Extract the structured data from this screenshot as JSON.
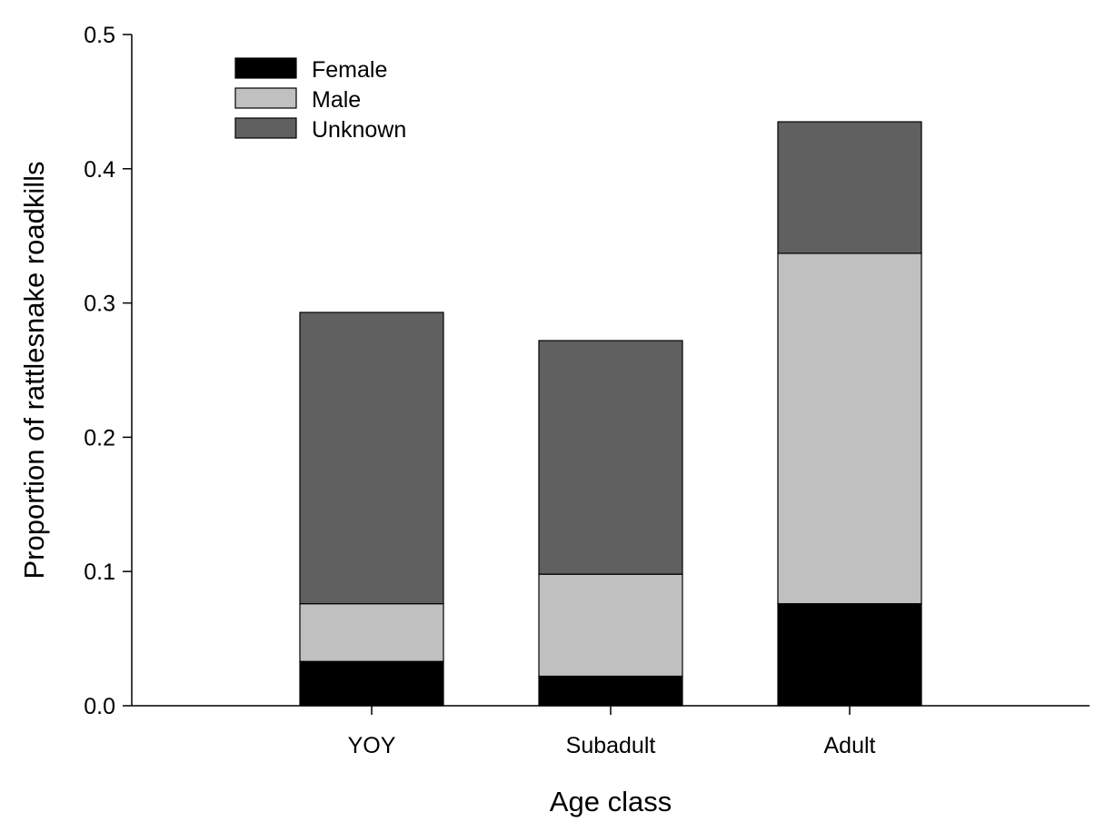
{
  "chart_data": {
    "type": "bar",
    "stacked": true,
    "categories": [
      "YOY",
      "Subadult",
      "Adult"
    ],
    "series": [
      {
        "name": "Female",
        "color": "#000000",
        "values": [
          0.033,
          0.022,
          0.076
        ]
      },
      {
        "name": "Male",
        "color": "#c0c0c0",
        "values": [
          0.043,
          0.076,
          0.261
        ]
      },
      {
        "name": "Unknown",
        "color": "#606060",
        "values": [
          0.217,
          0.174,
          0.098
        ]
      }
    ],
    "xlabel": "Age class",
    "ylabel": "Proportion of rattlesnake roadkills",
    "ylim": [
      0,
      0.5
    ],
    "yticks": [
      "0.0",
      "0.1",
      "0.2",
      "0.3",
      "0.4",
      "0.5"
    ],
    "grid": false,
    "legend_position": "top-left"
  }
}
